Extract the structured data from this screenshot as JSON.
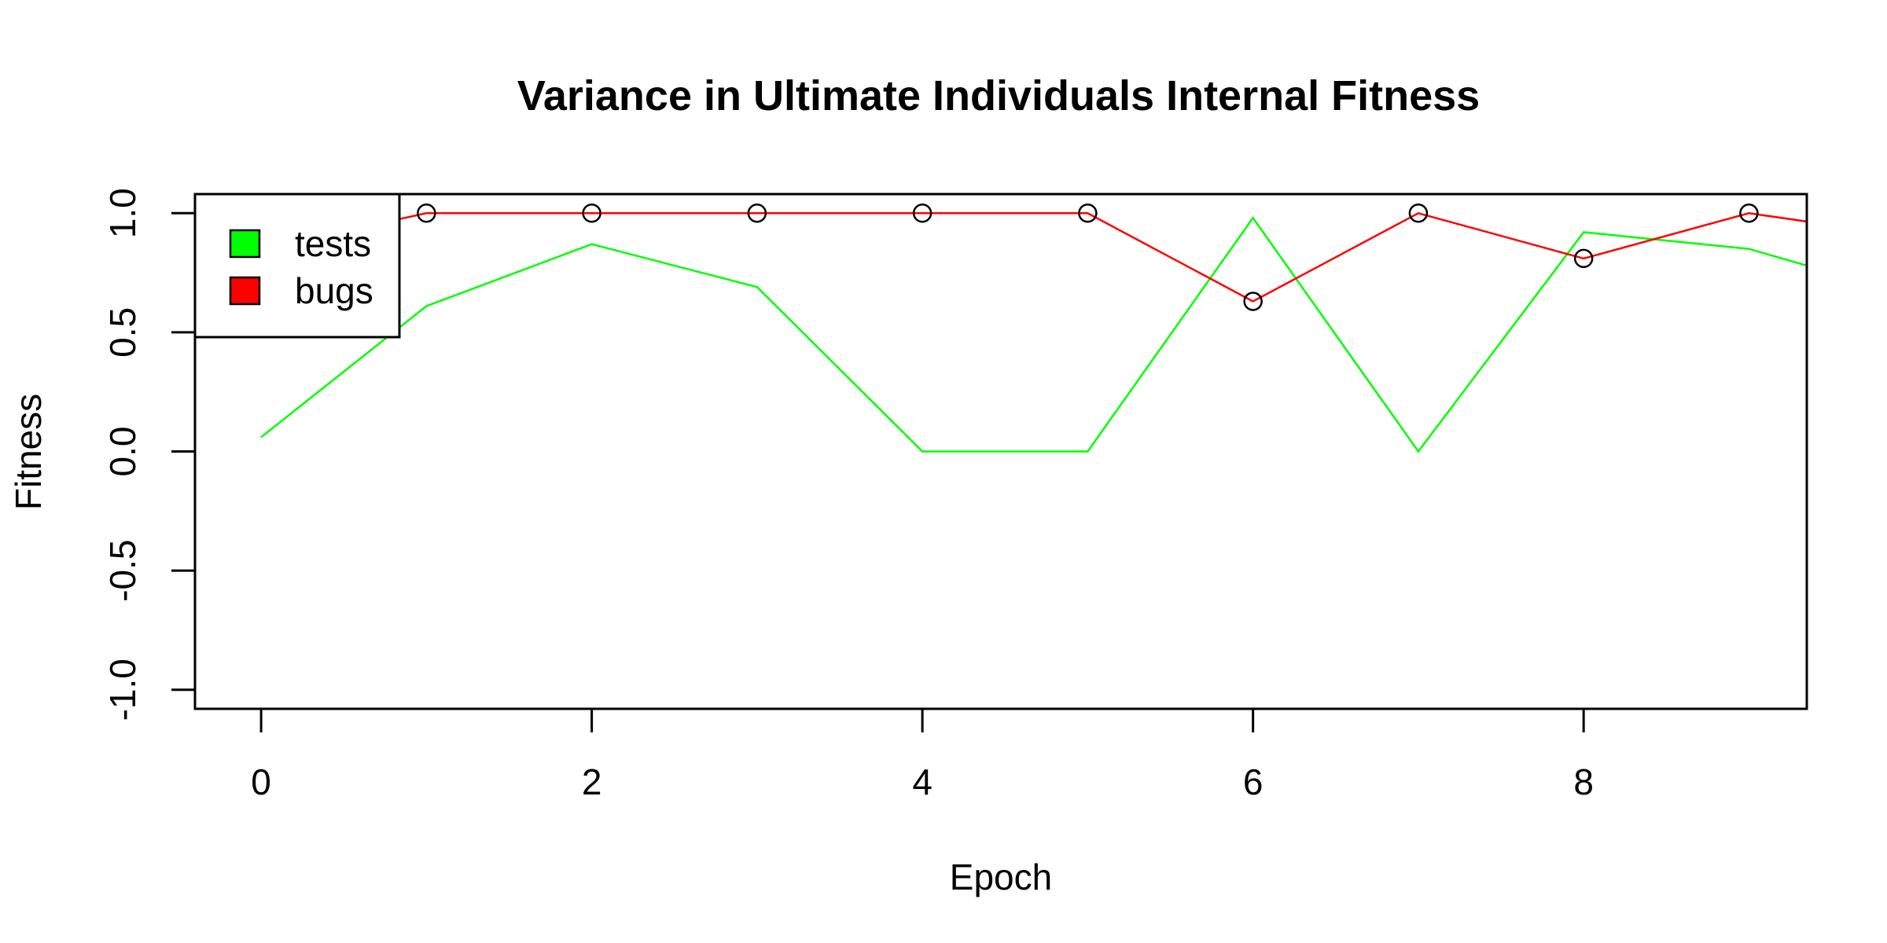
{
  "chart_data": {
    "type": "line",
    "title": "Variance in Ultimate Individuals Internal Fitness",
    "xlabel": "Epoch",
    "ylabel": "Fitness",
    "xlim": [
      -0.4,
      9.35
    ],
    "ylim": [
      -1.08,
      1.08
    ],
    "x_ticks": [
      0,
      2,
      4,
      6,
      8
    ],
    "x_tick_labels": [
      "0",
      "2",
      "4",
      "6",
      "8"
    ],
    "y_ticks": [
      -1.0,
      -0.5,
      0.0,
      0.5,
      1.0
    ],
    "y_tick_labels": [
      "-1.0",
      "-0.5",
      "0.0",
      "0.5",
      "1.0"
    ],
    "x": [
      0,
      1,
      2,
      3,
      4,
      5,
      6,
      7,
      8,
      9,
      10
    ],
    "series": [
      {
        "name": "tests",
        "color": "#00ff00",
        "values": [
          0.06,
          0.61,
          0.87,
          0.69,
          0.0,
          0.0,
          0.98,
          0.0,
          0.92,
          0.85,
          0.65
        ],
        "markers": false
      },
      {
        "name": "bugs",
        "color": "#ff0000",
        "values": [
          0.85,
          1.0,
          1.0,
          1.0,
          1.0,
          1.0,
          0.63,
          1.0,
          0.81,
          1.0,
          0.9
        ],
        "markers": true,
        "marker_x": [
          1,
          2,
          3,
          4,
          5,
          6,
          7,
          8,
          9
        ]
      }
    ],
    "grid": false,
    "legend_position": "top-left"
  }
}
